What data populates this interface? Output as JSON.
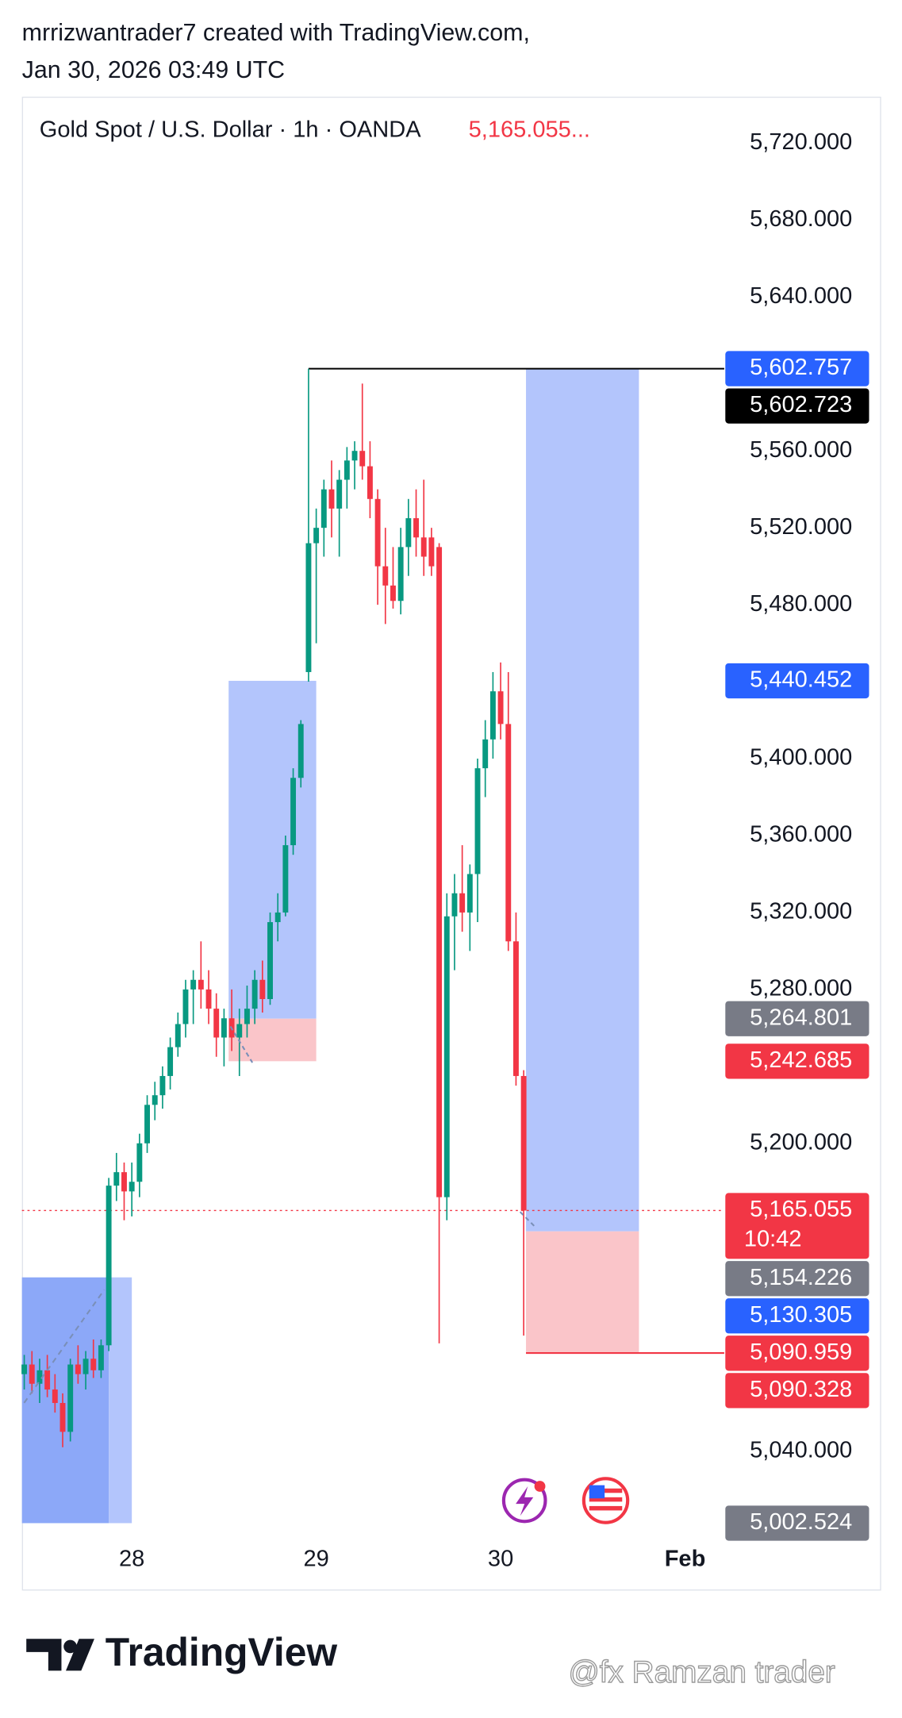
{
  "chart_data": {
    "type": "candlestick",
    "credit": "mrrizwantrader7 created with TradingView.com,",
    "timestamp": "Jan 30, 2026 03:49 UTC",
    "title": "Gold Spot / U.S. Dollar · 1h · OANDA",
    "last_price_label": "5,165.055...",
    "up_color": "#089981",
    "down_color": "#f23645",
    "xlim": [
      -14.3,
      77.1
    ],
    "xticks": [
      {
        "value": 0,
        "label": "28"
      },
      {
        "value": 24,
        "label": "29"
      },
      {
        "value": 48,
        "label": "30"
      },
      {
        "value": 72,
        "label": "Feb"
      }
    ],
    "ylim": [
      5000,
      5743
    ],
    "yticks": [
      {
        "value": 5720,
        "label": "5,720.000"
      },
      {
        "value": 5680,
        "label": "5,680.000"
      },
      {
        "value": 5640,
        "label": "5,640.000"
      },
      {
        "value": 5560,
        "label": "5,560.000"
      },
      {
        "value": 5520,
        "label": "5,520.000"
      },
      {
        "value": 5480,
        "label": "5,480.000"
      },
      {
        "value": 5400,
        "label": "5,400.000"
      },
      {
        "value": 5360,
        "label": "5,360.000"
      },
      {
        "value": 5320,
        "label": "5,320.000"
      },
      {
        "value": 5280,
        "label": "5,280.000"
      },
      {
        "value": 5200,
        "label": "5,200.000"
      },
      {
        "value": 5040,
        "label": "5,040.000"
      }
    ],
    "x": [
      -14,
      -13,
      -12,
      -11,
      -10,
      -9,
      -8,
      -7,
      -6,
      -5,
      -4,
      -3,
      -2,
      -1,
      0,
      1,
      2,
      3,
      4,
      5,
      6,
      7,
      8,
      9,
      10,
      11,
      12,
      13,
      14,
      15,
      16,
      17,
      18,
      19,
      20,
      21,
      22,
      23,
      24,
      25,
      26,
      27,
      28,
      29,
      30,
      31,
      32,
      33,
      34,
      35,
      36,
      37,
      38,
      39,
      40,
      41,
      42,
      43,
      44,
      45,
      46,
      47,
      48,
      49,
      50,
      51
    ],
    "open": [
      5080,
      5085,
      5075,
      5082,
      5072,
      5065,
      5050,
      5085,
      5080,
      5088,
      5082,
      5095,
      5178,
      5185,
      5175,
      5180,
      5200,
      5220,
      5225,
      5235,
      5250,
      5262,
      5280,
      5285,
      5280,
      5270,
      5255,
      5265,
      5255,
      5262,
      5270,
      5285,
      5275,
      5315,
      5320,
      5355,
      5390,
      5445,
      5512,
      5520,
      5540,
      5530,
      5545,
      5555,
      5560,
      5552,
      5535,
      5500,
      5490,
      5482,
      5510,
      5525,
      5515,
      5515,
      5510,
      5172,
      5318,
      5330,
      5320,
      5340,
      5395,
      5410,
      5435,
      5418,
      5305,
      5235
    ],
    "high": [
      5090,
      5092,
      5088,
      5090,
      5080,
      5070,
      5088,
      5095,
      5092,
      5098,
      5098,
      5182,
      5195,
      5190,
      5190,
      5205,
      5225,
      5232,
      5240,
      5255,
      5268,
      5285,
      5290,
      5305,
      5290,
      5278,
      5270,
      5280,
      5270,
      5282,
      5290,
      5295,
      5320,
      5330,
      5360,
      5395,
      5420,
      5602.723,
      5530,
      5545,
      5555,
      5550,
      5562,
      5565,
      5595,
      5565,
      5540,
      5520,
      5510,
      5520,
      5535,
      5540,
      5545,
      5520,
      5512,
      5330,
      5340,
      5355,
      5345,
      5400,
      5420,
      5445,
      5450,
      5445,
      5320,
      5238
    ],
    "low": [
      5072,
      5070,
      5065,
      5068,
      5060,
      5042,
      5045,
      5075,
      5072,
      5078,
      5078,
      5092,
      5170,
      5160,
      5162,
      5172,
      5195,
      5212,
      5218,
      5228,
      5245,
      5255,
      5262,
      5270,
      5262,
      5245,
      5240,
      5248,
      5235,
      5255,
      5262,
      5268,
      5272,
      5305,
      5318,
      5350,
      5385,
      5440,
      5460,
      5505,
      5515,
      5505,
      5530,
      5540,
      5545,
      5525,
      5480,
      5470,
      5478,
      5475,
      5495,
      5505,
      5495,
      5495,
      5096,
      5160,
      5290,
      5310,
      5300,
      5315,
      5380,
      5400,
      5410,
      5300,
      5230,
      5100
    ],
    "close": [
      5085,
      5075,
      5082,
      5072,
      5065,
      5050,
      5085,
      5080,
      5088,
      5082,
      5095,
      5178,
      5185,
      5175,
      5180,
      5200,
      5220,
      5225,
      5235,
      5250,
      5262,
      5280,
      5285,
      5280,
      5270,
      5255,
      5265,
      5255,
      5262,
      5270,
      5285,
      5275,
      5315,
      5320,
      5355,
      5390,
      5418,
      5512,
      5520,
      5540,
      5530,
      5545,
      5555,
      5560,
      5552,
      5535,
      5500,
      5490,
      5482,
      5510,
      5525,
      5515,
      5505,
      5500,
      5172,
      5318,
      5330,
      5320,
      5340,
      5395,
      5410,
      5435,
      5418,
      5305,
      5235,
      5165.055
    ],
    "drawings": [
      {
        "x": [
          -14.3,
          -3
        ],
        "y": [
          5002.524,
          5130.305
        ],
        "color": "#8ca8f8"
      },
      {
        "x": [
          -3,
          0
        ],
        "y": [
          5002.524,
          5130.305
        ],
        "color": "#b3c5fc"
      },
      {
        "x": [
          12.6,
          24
        ],
        "y": [
          5264.801,
          5440.452
        ],
        "color": "#b3c5fc"
      },
      {
        "x": [
          12.6,
          24
        ],
        "y": [
          5242.685,
          5264.801
        ],
        "color": "#fac5c9"
      },
      {
        "x": [
          51.3,
          66
        ],
        "y": [
          5154.226,
          5602.723
        ],
        "color": "#b3c5fc"
      },
      {
        "x": [
          51.3,
          66
        ],
        "y": [
          5090.959,
          5154.226
        ],
        "color": "#fac5c9"
      }
    ],
    "price_labels": [
      {
        "value": 5602.757,
        "label": "5,602.757",
        "color": "#2962ff"
      },
      {
        "value": 5602.723,
        "label": "5,602.723",
        "color": "#000000"
      },
      {
        "value": 5440.452,
        "label": "5,440.452",
        "color": "#2962ff"
      },
      {
        "value": 5264.801,
        "label": "5,264.801",
        "color": "#787b86"
      },
      {
        "value": 5242.685,
        "label": "5,242.685",
        "color": "#f23645"
      },
      {
        "value": 5165.055,
        "label": "5,165.055",
        "sublabel": "10:42",
        "color": "#f23645"
      },
      {
        "value": 5154.226,
        "label": "5,154.226",
        "color": "#787b86"
      },
      {
        "value": 5130.305,
        "label": "5,130.305",
        "color": "#2962ff"
      },
      {
        "value": 5090.959,
        "label": "5,090.959",
        "color": "#f23645"
      },
      {
        "value": 5090.328,
        "label": "5,090.328",
        "color": "#f23645"
      },
      {
        "value": 5002.524,
        "label": "5,002.524",
        "color": "#787b86"
      }
    ]
  },
  "branding": {
    "logo": "TradingView",
    "watermark": "@fx Ramzan trader"
  }
}
